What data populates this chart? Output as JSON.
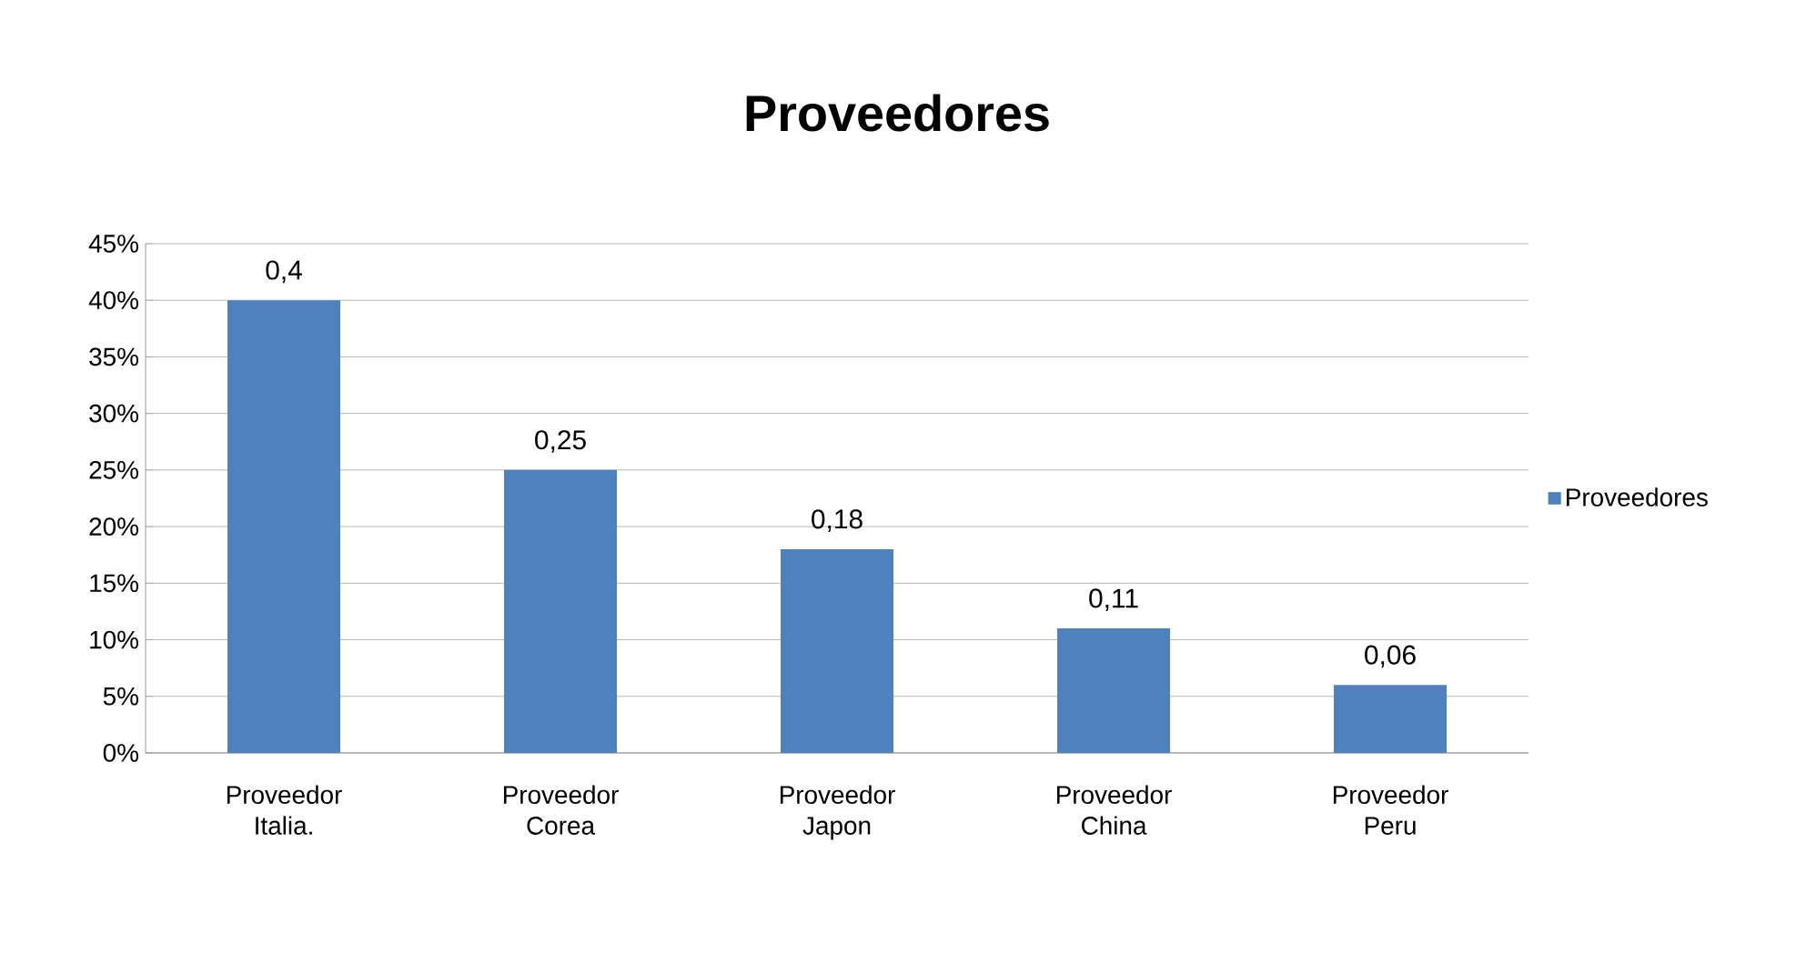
{
  "chart_data": {
    "type": "bar",
    "title": "Proveedores",
    "categories": [
      "Proveedor Italia.",
      "Proveedor Corea",
      "Proveedor Japon",
      "Proveedor China",
      "Proveedor Peru"
    ],
    "series": [
      {
        "name": "Proveedores",
        "color": "#4f81bd",
        "values": [
          0.4,
          0.25,
          0.18,
          0.11,
          0.06
        ],
        "value_labels": [
          "0,4",
          "0,25",
          "0,18",
          "0,11",
          "0,06"
        ]
      }
    ],
    "ylim": [
      0,
      0.45
    ],
    "yticks": [
      {
        "value": 0,
        "label": "0%"
      },
      {
        "value": 0.05,
        "label": "5%"
      },
      {
        "value": 0.1,
        "label": "10%"
      },
      {
        "value": 0.15,
        "label": "15%"
      },
      {
        "value": 0.2,
        "label": "20%"
      },
      {
        "value": 0.25,
        "label": "25%"
      },
      {
        "value": 0.3,
        "label": "30%"
      },
      {
        "value": 0.35,
        "label": "35%"
      },
      {
        "value": 0.4,
        "label": "40%"
      },
      {
        "value": 0.45,
        "label": "45%"
      }
    ],
    "grid": "y",
    "legend": "right"
  }
}
